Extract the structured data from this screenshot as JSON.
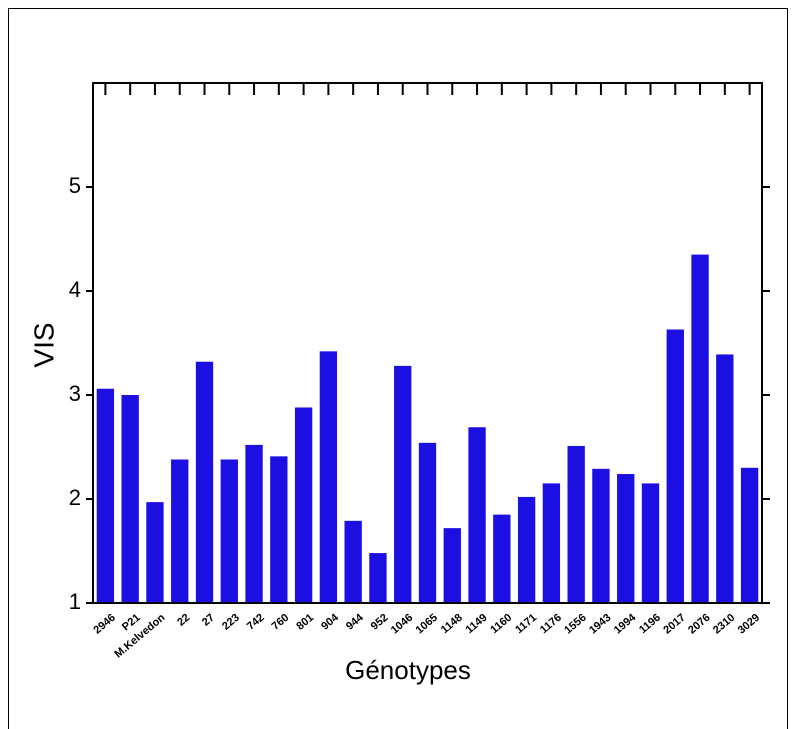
{
  "chart_data": {
    "type": "bar",
    "y_label": "VIS",
    "x_label": "Génotypes",
    "categories": [
      "2946",
      "P21",
      "M.Kelvedon",
      "22",
      "27",
      "223",
      "742",
      "760",
      "801",
      "904",
      "944",
      "952",
      "1046",
      "1065",
      "1148",
      "1149",
      "1160",
      "1171",
      "1176",
      "1556",
      "1943",
      "1994",
      "1196",
      "2017",
      "2076",
      "2310",
      "3029"
    ],
    "values": [
      3.06,
      3.0,
      1.97,
      2.38,
      3.32,
      2.38,
      2.52,
      2.41,
      2.88,
      3.42,
      1.79,
      1.48,
      3.28,
      2.54,
      1.72,
      2.69,
      1.85,
      2.02,
      2.15,
      2.51,
      2.29,
      2.24,
      2.15,
      3.63,
      4.35,
      3.39,
      2.3
    ],
    "color": "#1c0fe2",
    "ylim": [
      1,
      6
    ],
    "yticks": [
      1,
      2,
      3,
      4,
      5
    ]
  }
}
